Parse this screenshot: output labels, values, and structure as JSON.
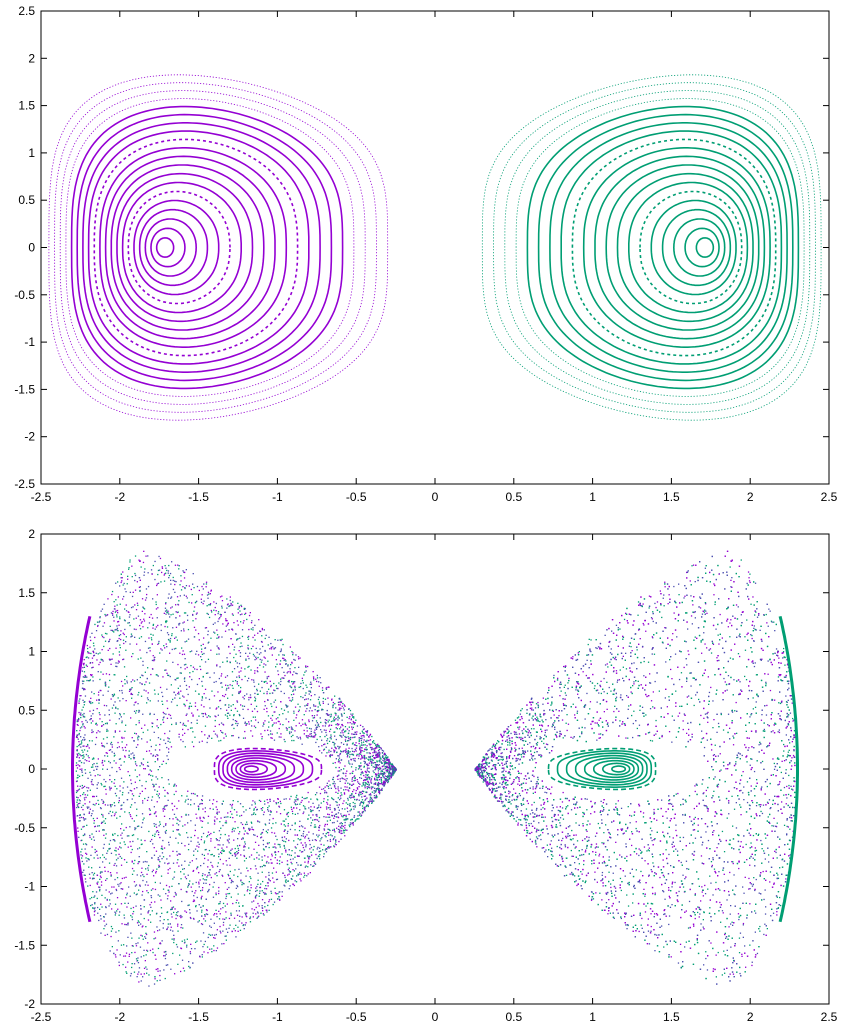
{
  "colors": {
    "series_a": "#9400d3",
    "series_b": "#009e73",
    "axis": "#000000"
  },
  "chart_data": [
    {
      "type": "scatter",
      "title": "",
      "xlabel": "",
      "ylabel": "",
      "xlim": [
        -2.5,
        2.5
      ],
      "ylim": [
        -2.5,
        2.5
      ],
      "xticks": [
        "-2.5",
        "-2",
        "-1.5",
        "-1",
        "-0.5",
        "0",
        "0.5",
        "1",
        "1.5",
        "2",
        "2.5"
      ],
      "yticks": [
        "-2.5",
        "-2",
        "-1.5",
        "-1",
        "-0.5",
        "0",
        "0.5",
        "1",
        "1.5",
        "2",
        "2.5"
      ],
      "grid": false,
      "legend": "none",
      "series": [
        {
          "color": "#9400d3",
          "center": [
            -1.73,
            0
          ],
          "outer_tip_x": -0.3,
          "outer_back_x": -2.45,
          "outer_half_height": 2.05,
          "curve_count": 20
        },
        {
          "color": "#009e73",
          "center": [
            1.73,
            0
          ],
          "outer_tip_x": 0.3,
          "outer_back_x": 2.45,
          "outer_half_height": 2.05,
          "curve_count": 20
        }
      ]
    },
    {
      "type": "scatter",
      "title": "",
      "xlabel": "",
      "ylabel": "",
      "xlim": [
        -2.5,
        2.5
      ],
      "ylim": [
        -2,
        2
      ],
      "xticks": [
        "-2.5",
        "-2",
        "-1.5",
        "-1",
        "-0.5",
        "0",
        "0.5",
        "1",
        "1.5",
        "2",
        "2.5"
      ],
      "yticks": [
        "-2",
        "-1.5",
        "-1",
        "-0.5",
        "0",
        "0.5",
        "1",
        "1.5",
        "2"
      ],
      "grid": false,
      "legend": "none",
      "chaotic_sea": [
        {
          "tip_x": -0.25,
          "back_x": -2.28,
          "half_height": 1.96,
          "peak_x": -1.7
        },
        {
          "tip_x": 0.25,
          "back_x": 2.28,
          "half_height": 1.96,
          "peak_x": 1.7
        }
      ],
      "series": [
        {
          "color": "#9400d3",
          "island_center": [
            -1.18,
            0
          ],
          "island_tip_x": -0.72,
          "island_back_x": -1.4,
          "island_half_height": 0.2,
          "island_curve_count": 8,
          "edge_curve_x": -2.3,
          "edge_curve_half_height": 1.3
        },
        {
          "color": "#009e73",
          "island_center": [
            1.18,
            0
          ],
          "island_tip_x": 0.72,
          "island_back_x": 1.4,
          "island_half_height": 0.2,
          "island_curve_count": 8,
          "edge_curve_x": 2.3,
          "edge_curve_half_height": 1.3
        }
      ]
    }
  ]
}
